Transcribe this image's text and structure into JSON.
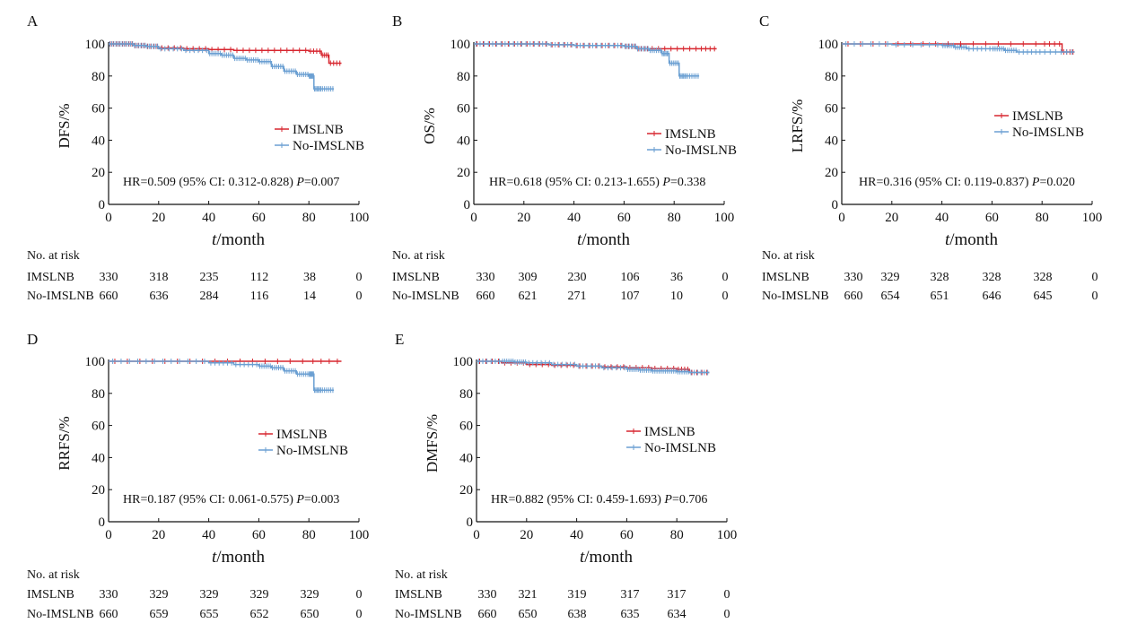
{
  "figure": {
    "x_label_italic": "t",
    "x_label_rest": "/month",
    "risk_title": "No. at risk",
    "legend": [
      "IMSLNB",
      "No-IMSLNB"
    ],
    "colors": {
      "IMSLNB": "#d7262f",
      "No-IMSLNB": "#6a9fd2"
    }
  },
  "chart_data": [
    {
      "type": "line",
      "panel": "A",
      "ylabel": "DFS/%",
      "xlim": [
        0,
        100
      ],
      "ylim": [
        0,
        100
      ],
      "x_ticks": [
        0,
        20,
        40,
        60,
        80,
        100
      ],
      "y_ticks": [
        0,
        20,
        40,
        60,
        80,
        100
      ],
      "legend_loc": "right",
      "hr_text": "HR=0.509 (95% CI: 0.312-0.828) ",
      "p_label": "P",
      "p_text": "=0.007",
      "series": [
        {
          "name": "IMSLNB",
          "x": [
            0,
            5,
            10,
            15,
            20,
            30,
            40,
            50,
            60,
            70,
            80,
            85,
            88,
            93
          ],
          "y": [
            100,
            100,
            99,
            98.5,
            97.5,
            97,
            96.5,
            96,
            96,
            96,
            95.5,
            93,
            88,
            88
          ]
        },
        {
          "name": "No-IMSLNB",
          "x": [
            0,
            5,
            10,
            15,
            20,
            30,
            40,
            45,
            50,
            55,
            60,
            65,
            70,
            75,
            80,
            82,
            85,
            90
          ],
          "y": [
            100,
            100,
            99,
            98.5,
            97,
            96,
            94,
            93,
            91,
            90,
            89,
            86,
            83,
            81,
            80,
            72,
            72,
            72
          ]
        }
      ],
      "risk": {
        "x": [
          0,
          20,
          40,
          60,
          80,
          100
        ],
        "rows": [
          {
            "label": "IMSLNB",
            "values": [
              "330",
              "318",
              "235",
              "112",
              "38",
              "0"
            ]
          },
          {
            "label": "No-IMSLNB",
            "values": [
              "660",
              "636",
              "284",
              "116",
              "14",
              "0"
            ]
          }
        ]
      }
    },
    {
      "type": "line",
      "panel": "B",
      "ylabel": "OS/%",
      "xlim": [
        0,
        100
      ],
      "ylim": [
        0,
        100
      ],
      "x_ticks": [
        0,
        20,
        40,
        60,
        80,
        100
      ],
      "y_ticks": [
        0,
        20,
        40,
        60,
        80,
        100
      ],
      "legend_loc": "right",
      "hr_text": "HR=0.618 (95% CI: 0.213-1.655) ",
      "p_label": "P",
      "p_text": "=0.338",
      "series": [
        {
          "name": "IMSLNB",
          "x": [
            0,
            10,
            20,
            30,
            40,
            50,
            60,
            65,
            70,
            80,
            90,
            97
          ],
          "y": [
            100,
            100,
            100,
            99.5,
            99,
            99,
            98.5,
            97,
            97,
            97,
            97,
            97
          ]
        },
        {
          "name": "No-IMSLNB",
          "x": [
            0,
            10,
            20,
            30,
            40,
            50,
            60,
            65,
            70,
            75,
            78,
            82,
            85,
            90
          ],
          "y": [
            100,
            100,
            100,
            99.5,
            99,
            99,
            98.5,
            97,
            96,
            94,
            88,
            80,
            80,
            80
          ]
        }
      ],
      "risk": {
        "x": [
          0,
          20,
          40,
          60,
          80,
          100
        ],
        "rows": [
          {
            "label": "IMSLNB",
            "values": [
              "330",
              "309",
              "230",
              "106",
              "36",
              "0"
            ]
          },
          {
            "label": "No-IMSLNB",
            "values": [
              "660",
              "621",
              "271",
              "107",
              "10",
              "0"
            ]
          }
        ]
      }
    },
    {
      "type": "line",
      "panel": "C",
      "ylabel": "LRFS/%",
      "xlim": [
        0,
        100
      ],
      "ylim": [
        0,
        100
      ],
      "x_ticks": [
        0,
        20,
        40,
        60,
        80,
        100
      ],
      "y_ticks": [
        0,
        20,
        40,
        60,
        80,
        100
      ],
      "legend_loc": "right",
      "hr_text": "HR=0.316 (95% CI: 0.119-0.837) ",
      "p_label": "P",
      "p_text": "=0.020",
      "series": [
        {
          "name": "IMSLNB",
          "x": [
            0,
            20,
            40,
            60,
            80,
            88,
            93
          ],
          "y": [
            100,
            100,
            100,
            100,
            100,
            95,
            95
          ]
        },
        {
          "name": "No-IMSLNB",
          "x": [
            0,
            20,
            40,
            45,
            50,
            60,
            65,
            70,
            80,
            93
          ],
          "y": [
            100,
            99.5,
            99,
            98,
            97,
            97,
            96,
            95,
            95,
            95
          ]
        }
      ],
      "risk": {
        "x": [
          0,
          20,
          40,
          60,
          80,
          100
        ],
        "rows": [
          {
            "label": "IMSLNB",
            "values": [
              "330",
              "329",
              "328",
              "328",
              "328",
              "0"
            ]
          },
          {
            "label": "No-IMSLNB",
            "values": [
              "660",
              "654",
              "651",
              "646",
              "645",
              "0"
            ]
          }
        ]
      }
    },
    {
      "type": "line",
      "panel": "D",
      "ylabel": "RRFS/%",
      "xlim": [
        0,
        100
      ],
      "ylim": [
        0,
        100
      ],
      "x_ticks": [
        0,
        20,
        40,
        60,
        80,
        100
      ],
      "y_ticks": [
        0,
        20,
        40,
        60,
        80,
        100
      ],
      "legend_loc": "right",
      "hr_text": "HR=0.187 (95% CI: 0.061-0.575) ",
      "p_label": "P",
      "p_text": "=0.003",
      "series": [
        {
          "name": "IMSLNB",
          "x": [
            0,
            20,
            40,
            60,
            80,
            93
          ],
          "y": [
            100,
            100,
            100,
            100,
            100,
            100
          ]
        },
        {
          "name": "No-IMSLNB",
          "x": [
            0,
            20,
            40,
            50,
            60,
            65,
            70,
            75,
            80,
            82,
            85,
            90
          ],
          "y": [
            100,
            100,
            99,
            98,
            97,
            96,
            94,
            92,
            92,
            82,
            82,
            82
          ]
        }
      ],
      "risk": {
        "x": [
          0,
          20,
          40,
          60,
          80,
          100
        ],
        "rows": [
          {
            "label": "IMSLNB",
            "values": [
              "330",
              "329",
              "329",
              "329",
              "329",
              "0"
            ]
          },
          {
            "label": "No-IMSLNB",
            "values": [
              "660",
              "659",
              "655",
              "652",
              "650",
              "0"
            ]
          }
        ]
      }
    },
    {
      "type": "line",
      "panel": "E",
      "ylabel": "DMFS/%",
      "xlim": [
        0,
        100
      ],
      "ylim": [
        0,
        100
      ],
      "x_ticks": [
        0,
        20,
        40,
        60,
        80,
        100
      ],
      "y_ticks": [
        0,
        20,
        40,
        60,
        80,
        100
      ],
      "legend_loc": "right",
      "hr_text": "HR=0.882 (95% CI: 0.459-1.693) ",
      "p_label": "P",
      "p_text": "=0.706",
      "series": [
        {
          "name": "IMSLNB",
          "x": [
            0,
            10,
            20,
            30,
            40,
            50,
            60,
            70,
            80,
            85,
            93
          ],
          "y": [
            100,
            99,
            98,
            97.5,
            97,
            96.5,
            96,
            95.5,
            95,
            93,
            93
          ]
        },
        {
          "name": "No-IMSLNB",
          "x": [
            0,
            10,
            15,
            20,
            30,
            40,
            50,
            60,
            65,
            70,
            75,
            80,
            85,
            93
          ],
          "y": [
            100,
            100,
            99.5,
            99,
            98,
            97,
            96,
            95,
            94.5,
            94,
            94,
            93.5,
            93,
            93
          ]
        }
      ],
      "risk": {
        "x": [
          0,
          20,
          40,
          60,
          80,
          100
        ],
        "rows": [
          {
            "label": "IMSLNB",
            "values": [
              "330",
              "321",
              "319",
              "317",
              "317",
              "0"
            ]
          },
          {
            "label": "No-IMSLNB",
            "values": [
              "660",
              "650",
              "638",
              "635",
              "634",
              "0"
            ]
          }
        ]
      }
    }
  ]
}
